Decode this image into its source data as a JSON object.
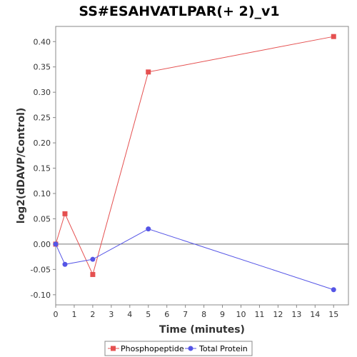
{
  "chart_data": {
    "type": "line",
    "title": "SS#ESAHVATLPAR(+ 2)_v1",
    "xlabel": "Time (minutes)",
    "ylabel": "log2(dDAVP/Control)",
    "xlim": [
      0,
      15.8
    ],
    "ylim": [
      -0.12,
      0.43
    ],
    "x_ticks": [
      0,
      1,
      2,
      3,
      4,
      5,
      6,
      7,
      8,
      9,
      10,
      11,
      12,
      13,
      14,
      15
    ],
    "y_ticks": [
      -0.1,
      -0.05,
      0.0,
      0.05,
      0.1,
      0.15,
      0.2,
      0.25,
      0.3,
      0.35,
      0.4
    ],
    "y_tick_labels": [
      "-0.10",
      "-0.05",
      "0.00",
      "0.05",
      "0.10",
      "0.15",
      "0.20",
      "0.25",
      "0.30",
      "0.35",
      "0.40"
    ],
    "grid": false,
    "zero_line": true,
    "legend_position": "bottom",
    "series": [
      {
        "name": "Phosphopeptide",
        "marker": "square",
        "color": "#e55050",
        "x": [
          0,
          0.5,
          2,
          5,
          15
        ],
        "y": [
          0.0,
          0.06,
          -0.06,
          0.34,
          0.41
        ]
      },
      {
        "name": "Total Protein",
        "marker": "circle",
        "color": "#5555e6",
        "x": [
          0,
          0.5,
          2,
          5,
          15
        ],
        "y": [
          0.0,
          -0.04,
          -0.03,
          0.03,
          -0.09
        ]
      }
    ]
  }
}
